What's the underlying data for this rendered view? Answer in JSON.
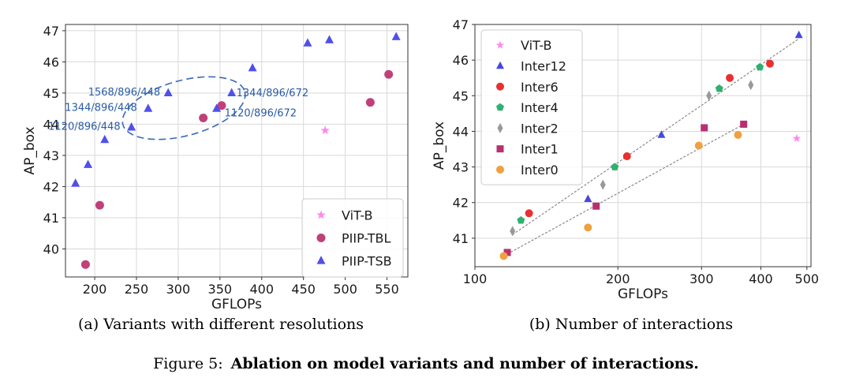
{
  "figure": {
    "label": "Figure 5:",
    "title": "Ablation on model variants and number of interactions."
  },
  "chart_data": [
    {
      "type": "scatter",
      "caption": "(a)  Variants with different resolutions",
      "xlabel": "GFLOPs",
      "ylabel": "AP_box",
      "xscale": "linear",
      "xlim": [
        165,
        575
      ],
      "ylim": [
        39.1,
        47.2
      ],
      "xticks": [
        200,
        250,
        300,
        350,
        400,
        450,
        500,
        550
      ],
      "yticks": [
        40,
        41,
        42,
        43,
        44,
        45,
        46,
        47
      ],
      "grid": true,
      "legend_position": "bottom-right",
      "series": [
        {
          "name": "ViT-B",
          "color": "#ff88ee",
          "marker": "star",
          "points": [
            [
              476,
              43.8
            ]
          ]
        },
        {
          "name": "PIIP-TBL",
          "color": "#c0407a",
          "marker": "circle",
          "points": [
            [
              189,
              39.5
            ],
            [
              206,
              41.4
            ],
            [
              330,
              44.2
            ],
            [
              352,
              44.6
            ],
            [
              530,
              44.7
            ],
            [
              552,
              45.6
            ]
          ]
        },
        {
          "name": "PIIP-TSB",
          "color": "#5050e8",
          "marker": "triangle",
          "points": [
            [
              177,
              42.1
            ],
            [
              192,
              42.7
            ],
            [
              212,
              43.5
            ],
            [
              244,
              43.9
            ],
            [
              264,
              44.5
            ],
            [
              288,
              45.0
            ],
            [
              346,
              44.5
            ],
            [
              364,
              45.0
            ],
            [
              389,
              45.8
            ],
            [
              455,
              46.6
            ],
            [
              481,
              46.7
            ],
            [
              561,
              46.8
            ]
          ]
        }
      ],
      "annotations": [
        {
          "text": "1568/896/448",
          "x": 288,
          "y": 45.0
        },
        {
          "text": "1344/896/448",
          "x": 264,
          "y": 44.5
        },
        {
          "text": "1120/896/448",
          "x": 244,
          "y": 43.9
        },
        {
          "text": "1344/896/672",
          "x": 364,
          "y": 45.0
        },
        {
          "text": "1120/896/672",
          "x": 346,
          "y": 44.5
        }
      ]
    },
    {
      "type": "scatter",
      "caption": "(b)  Number of interactions",
      "xlabel": "GFLOPs",
      "ylabel": "AP_box",
      "xscale": "log",
      "xlim": [
        100,
        510
      ],
      "ylim": [
        40.2,
        47.0
      ],
      "xticks": [
        100,
        200,
        300,
        400,
        500
      ],
      "yticks": [
        41,
        42,
        43,
        44,
        45,
        46,
        47
      ],
      "grid": true,
      "legend_position": "top-left",
      "series": [
        {
          "name": "ViT-B",
          "color": "#ff88ee",
          "marker": "star",
          "points": [
            [
              476,
              43.8
            ]
          ]
        },
        {
          "name": "Inter12",
          "color": "#4848e0",
          "marker": "triangle",
          "points": [
            [
              173,
              42.1
            ],
            [
              247,
              43.9
            ],
            [
              481,
              46.7
            ]
          ]
        },
        {
          "name": "Inter6",
          "color": "#e83030",
          "marker": "circle",
          "points": [
            [
              130,
              41.7
            ],
            [
              209,
              43.3
            ],
            [
              344,
              45.5
            ],
            [
              418,
              45.9
            ]
          ]
        },
        {
          "name": "Inter4",
          "color": "#30b070",
          "marker": "pentagon",
          "points": [
            [
              125,
              41.5
            ],
            [
              197,
              43.0
            ],
            [
              327,
              45.2
            ],
            [
              398,
              45.8
            ]
          ]
        },
        {
          "name": "Inter2",
          "color": "#999999",
          "marker": "diamond",
          "points": [
            [
              120,
              41.2
            ],
            [
              186,
              42.5
            ],
            [
              311,
              45.0
            ],
            [
              381,
              45.3
            ]
          ]
        },
        {
          "name": "Inter1",
          "color": "#b83070",
          "marker": "square",
          "points": [
            [
              117,
              40.6
            ],
            [
              180,
              41.9
            ],
            [
              304,
              44.1
            ],
            [
              368,
              44.2
            ]
          ]
        },
        {
          "name": "Inter0",
          "color": "#f0a040",
          "marker": "circle",
          "points": [
            [
              115,
              40.5
            ],
            [
              173,
              41.3
            ],
            [
              296,
              43.6
            ],
            [
              358,
              43.9
            ]
          ]
        }
      ],
      "trendlines": [
        {
          "from": [
            120,
            41.1
          ],
          "to": [
            481,
            46.6
          ]
        },
        {
          "from": [
            115,
            40.5
          ],
          "to": [
            368,
            44.2
          ]
        }
      ]
    }
  ]
}
